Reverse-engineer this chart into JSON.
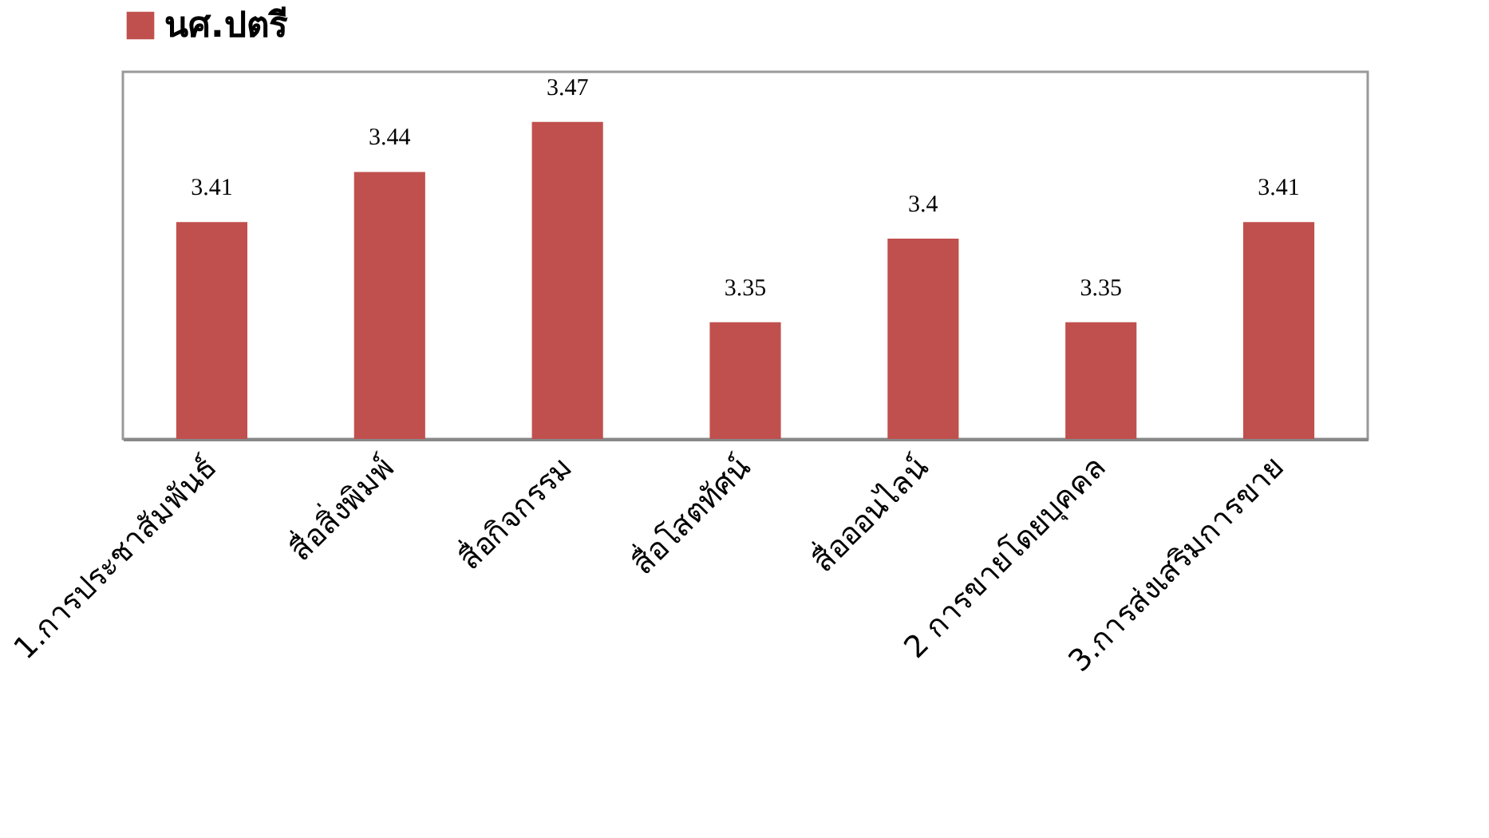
{
  "chart_data": {
    "type": "bar",
    "categories": [
      "1.การประชาสัมพันธ์",
      "สื่อสิ่งพิมพ์",
      "สื่อกิจกรรม",
      "สื่อโสตทัศน์",
      "สื่อออนไลน์",
      "2 การขายโดยบุคคล",
      "3.การส่งเสริมการขาย"
    ],
    "series": [
      {
        "name": "นศ.ปตรี",
        "color": "#c0504d",
        "values": [
          3.41,
          3.44,
          3.47,
          3.35,
          3.4,
          3.35,
          3.41
        ]
      }
    ],
    "ylim": [
      3.28,
      3.5
    ],
    "data_labels": true,
    "legend": "top",
    "grid": false,
    "tick_labels": "x"
  }
}
